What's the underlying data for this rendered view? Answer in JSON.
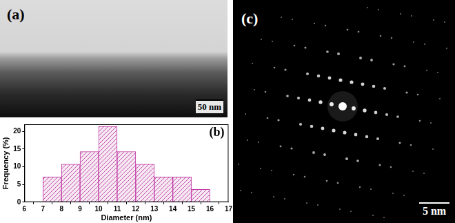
{
  "panels": {
    "a": {
      "label": "(a)",
      "scale_bar": "50 nm"
    },
    "c": {
      "label": "(c)",
      "scale_bar": "5 nm"
    }
  },
  "chart_data": {
    "type": "histogram",
    "title": "(b)",
    "x_label": "Diameter (nm)",
    "y_label": "Frequency (%)",
    "bins": [
      7,
      8,
      9,
      10,
      11,
      12,
      13,
      14,
      15,
      16
    ],
    "values": [
      7.1,
      10.7,
      14.3,
      21.4,
      14.3,
      10.7,
      7.1,
      7.1,
      3.6
    ],
    "color": "#c03aa6",
    "xlim": [
      6,
      17
    ],
    "xticks": [
      6,
      7,
      8,
      9,
      10,
      11,
      12,
      13,
      14,
      15,
      16,
      17
    ],
    "ylim": [
      0,
      22
    ],
    "yticks": [
      0,
      5,
      10,
      15,
      20
    ],
    "grid": false
  }
}
